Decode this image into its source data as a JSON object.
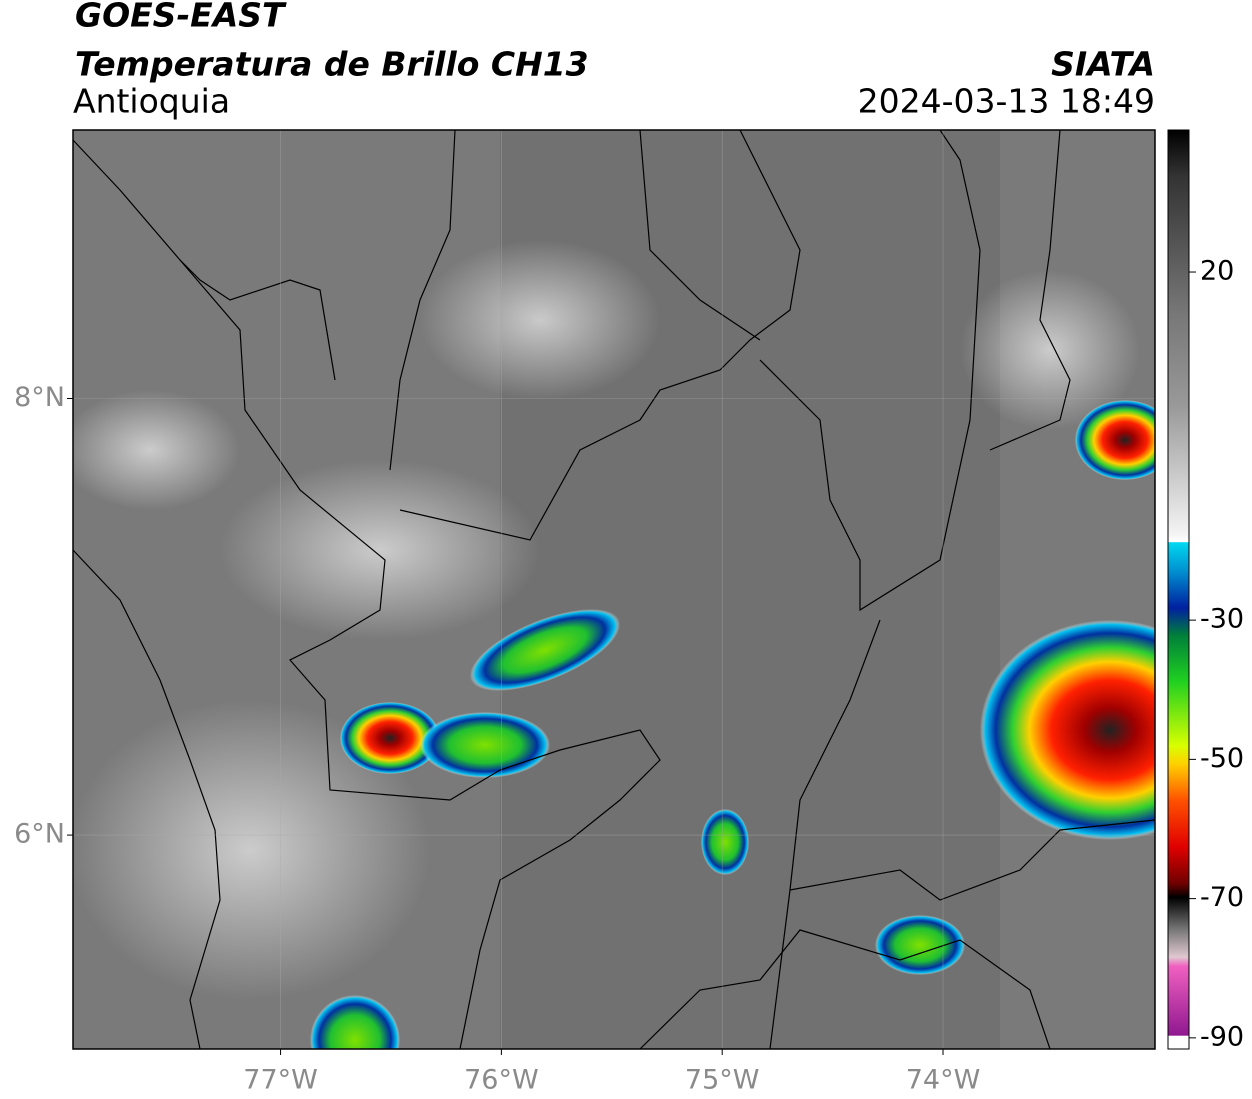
{
  "header": {
    "satellite": "GOES-EAST",
    "product": "Temperatura de Brillo CH13",
    "region": "Antioquia",
    "agency": "SIATA",
    "datetime": "2024-03-13 18:49"
  },
  "map": {
    "xlim": [
      -77.94,
      -73.04
    ],
    "ylim": [
      5.02,
      9.23
    ],
    "xticks": [
      {
        "value": -77,
        "label": "77°W"
      },
      {
        "value": -76,
        "label": "76°W"
      },
      {
        "value": -75,
        "label": "75°W"
      },
      {
        "value": -74,
        "label": "74°W"
      }
    ],
    "yticks": [
      {
        "value": 8,
        "label": "8°N"
      },
      {
        "value": 6,
        "label": "6°N"
      }
    ],
    "grid": true
  },
  "colorbar": {
    "lim": [
      -91.6,
      40.4
    ],
    "ticks": [
      20,
      -30,
      -50,
      -70,
      -90
    ]
  }
}
